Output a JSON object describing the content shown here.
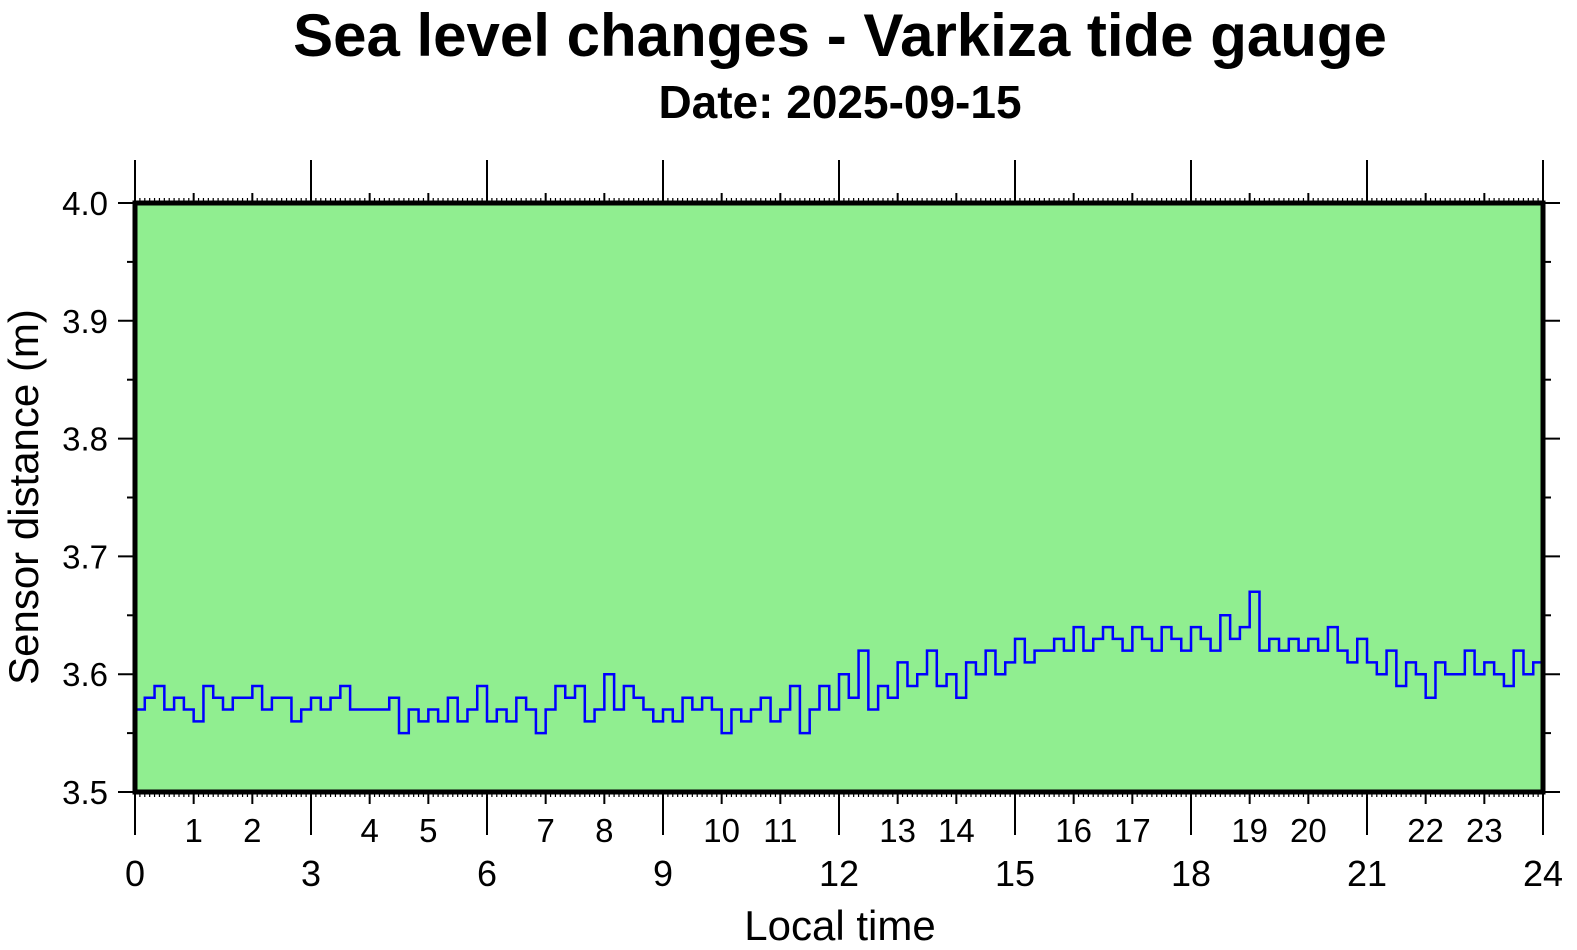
{
  "chart_data": {
    "type": "line",
    "title": "Sea level changes - Varkiza tide gauge",
    "subtitle": "Date: 2025-09-15",
    "xlabel": "Local time",
    "ylabel": "Sensor distance (m)",
    "xlim": [
      0,
      24
    ],
    "ylim": [
      3.5,
      4.0
    ],
    "xticks_major": [
      "0",
      "3",
      "6",
      "9",
      "12",
      "15",
      "18",
      "21",
      "24"
    ],
    "xticks_minor": [
      "1",
      "2",
      "4",
      "5",
      "7",
      "8",
      "10",
      "11",
      "13",
      "14",
      "16",
      "17",
      "19",
      "20",
      "22",
      "23"
    ],
    "yticks": [
      "3.5",
      "3.6",
      "3.7",
      "3.8",
      "3.9",
      "4.0"
    ],
    "grid": false,
    "background_color": "#90ee90",
    "line_color": "#0000ff",
    "x_step_hours": 0.16667,
    "series": [
      {
        "name": "Sensor distance",
        "values": [
          3.57,
          3.58,
          3.59,
          3.57,
          3.58,
          3.57,
          3.56,
          3.59,
          3.58,
          3.57,
          3.58,
          3.58,
          3.59,
          3.57,
          3.58,
          3.58,
          3.56,
          3.57,
          3.58,
          3.57,
          3.58,
          3.59,
          3.57,
          3.57,
          3.57,
          3.57,
          3.58,
          3.55,
          3.57,
          3.56,
          3.57,
          3.56,
          3.58,
          3.56,
          3.57,
          3.59,
          3.56,
          3.57,
          3.56,
          3.58,
          3.57,
          3.55,
          3.57,
          3.59,
          3.58,
          3.59,
          3.56,
          3.57,
          3.6,
          3.57,
          3.59,
          3.58,
          3.57,
          3.56,
          3.57,
          3.56,
          3.58,
          3.57,
          3.58,
          3.57,
          3.55,
          3.57,
          3.56,
          3.57,
          3.58,
          3.56,
          3.57,
          3.59,
          3.55,
          3.57,
          3.59,
          3.57,
          3.6,
          3.58,
          3.62,
          3.57,
          3.59,
          3.58,
          3.61,
          3.59,
          3.6,
          3.62,
          3.59,
          3.6,
          3.58,
          3.61,
          3.6,
          3.62,
          3.6,
          3.61,
          3.63,
          3.61,
          3.62,
          3.62,
          3.63,
          3.62,
          3.64,
          3.62,
          3.63,
          3.64,
          3.63,
          3.62,
          3.64,
          3.63,
          3.62,
          3.64,
          3.63,
          3.62,
          3.64,
          3.63,
          3.62,
          3.65,
          3.63,
          3.64,
          3.67,
          3.62,
          3.63,
          3.62,
          3.63,
          3.62,
          3.63,
          3.62,
          3.64,
          3.62,
          3.61,
          3.63,
          3.61,
          3.6,
          3.62,
          3.59,
          3.61,
          3.6,
          3.58,
          3.61,
          3.6,
          3.6,
          3.62,
          3.6,
          3.61,
          3.6,
          3.59,
          3.62,
          3.6,
          3.61,
          3.62
        ]
      }
    ]
  }
}
